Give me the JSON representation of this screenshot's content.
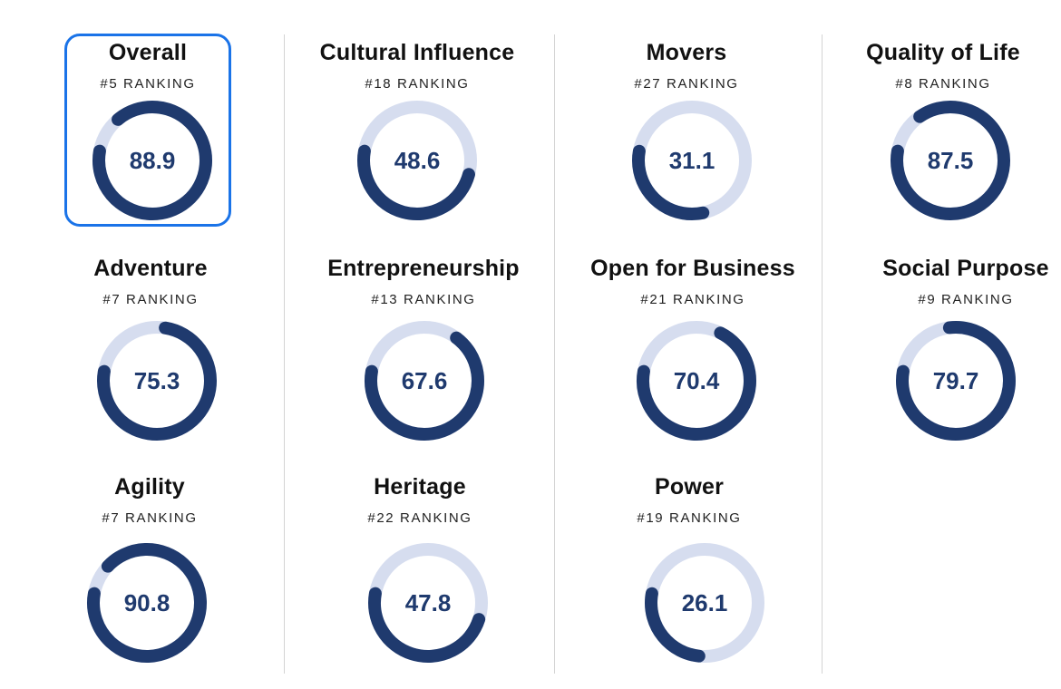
{
  "colors": {
    "arc": "#1f3a6e",
    "track": "#d6ddef",
    "selected_outline": "#1a73e8",
    "score_text": "#1f3a6e",
    "divider": "#d3d3d3"
  },
  "selected_metric": "overall",
  "metrics": [
    {
      "key": "overall",
      "title": "Overall",
      "ranking": "#5 RANKING",
      "score_label": "88.9",
      "score": 88.9
    },
    {
      "key": "cultural-influence",
      "title": "Cultural Influence",
      "ranking": "#18 RANKING",
      "score_label": "48.6",
      "score": 48.6
    },
    {
      "key": "movers",
      "title": "Movers",
      "ranking": "#27 RANKING",
      "score_label": "31.1",
      "score": 31.1
    },
    {
      "key": "quality-of-life",
      "title": "Quality of Life",
      "ranking": "#8 RANKING",
      "score_label": "87.5",
      "score": 87.5
    },
    {
      "key": "adventure",
      "title": "Adventure",
      "ranking": "#7 RANKING",
      "score_label": "75.3",
      "score": 75.3
    },
    {
      "key": "entrepreneurship",
      "title": "Entrepreneurship",
      "ranking": "#13 RANKING",
      "score_label": "67.6",
      "score": 67.6
    },
    {
      "key": "open-for-business",
      "title": "Open for Business",
      "ranking": "#21 RANKING",
      "score_label": "70.4",
      "score": 70.4
    },
    {
      "key": "social-purpose",
      "title": "Social Purpose",
      "ranking": "#9 RANKING",
      "score_label": "79.7",
      "score": 79.7
    },
    {
      "key": "agility",
      "title": "Agility",
      "ranking": "#7 RANKING",
      "score_label": "90.8",
      "score": 90.8
    },
    {
      "key": "heritage",
      "title": "Heritage",
      "ranking": "#22 RANKING",
      "score_label": "47.8",
      "score": 47.8
    },
    {
      "key": "power",
      "title": "Power",
      "ranking": "#19 RANKING",
      "score_label": "26.1",
      "score": 26.1
    }
  ]
}
